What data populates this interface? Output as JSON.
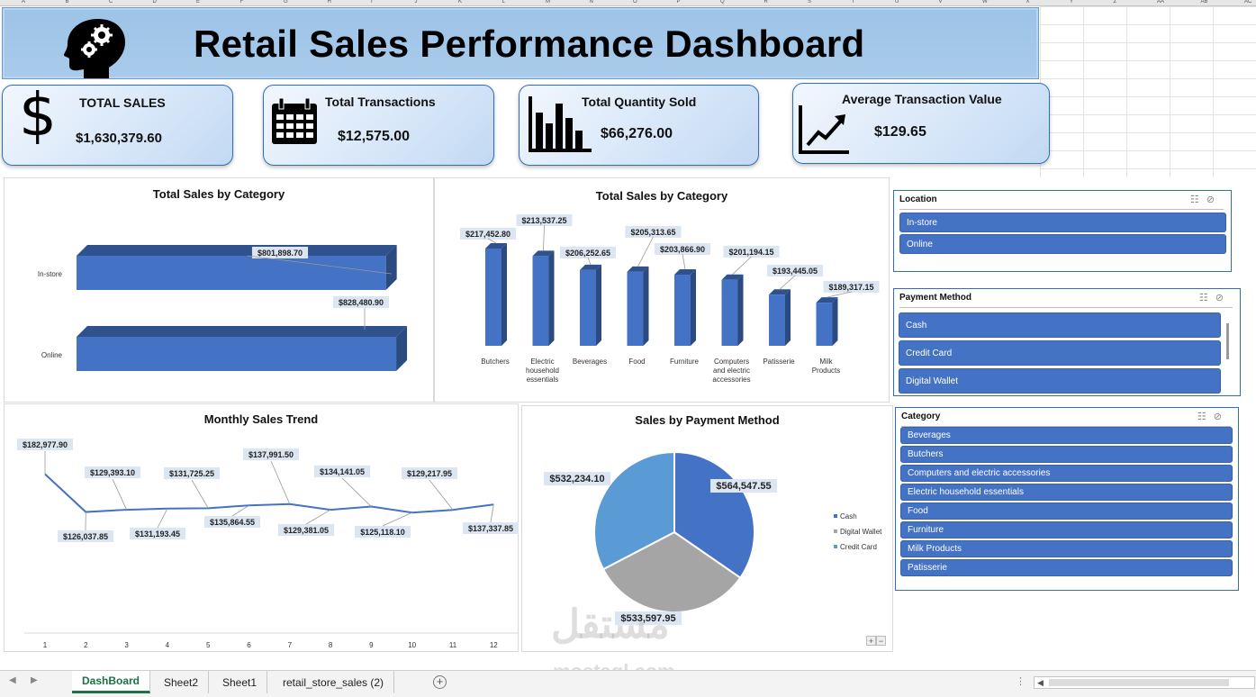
{
  "spreadsheet": {
    "columns": [
      "A",
      "B",
      "C",
      "D",
      "E",
      "F",
      "G",
      "H",
      "I",
      "J",
      "K",
      "L",
      "M",
      "N",
      "O",
      "P",
      "Q",
      "R",
      "S",
      "T",
      "U",
      "V",
      "W",
      "X",
      "Y",
      "Z",
      "AA",
      "AB",
      "AC"
    ],
    "sheet_tabs": [
      "DashBoard",
      "Sheet2",
      "Sheet1",
      "retail_store_sales (2)"
    ],
    "active_tab": "DashBoard"
  },
  "header": {
    "title": "Retail Sales Performance Dashboard",
    "icon": "brain-gears-icon"
  },
  "kpis": [
    {
      "label": "TOTAL SALES",
      "value": "$1,630,379.60",
      "icon": "dollar-icon"
    },
    {
      "label": "Total Transactions",
      "value": "$12,575.00",
      "icon": "calendar-icon"
    },
    {
      "label": "Total Quantity Sold",
      "value": "$66,276.00",
      "icon": "bar-chart-icon"
    },
    {
      "label": "Average Transaction Value",
      "value": "$129.65",
      "icon": "trend-up-icon"
    }
  ],
  "chart_data": [
    {
      "type": "bar",
      "orientation": "horizontal",
      "title": "Total Sales by Category",
      "categories": [
        "In-store",
        "Online"
      ],
      "values": [
        801898.7,
        828480.9
      ],
      "labels": [
        "$801,898.70",
        "$828,480.90"
      ],
      "color": "#4472c4"
    },
    {
      "type": "bar",
      "title": "Total Sales by Category",
      "categories": [
        "Butchers",
        "Electric household essentials",
        "Beverages",
        "Food",
        "Furniture",
        "Computers and electric accessories",
        "Patisserie",
        "Milk Products"
      ],
      "category_lines": [
        [
          "Butchers"
        ],
        [
          "Electric",
          "household",
          "essentials"
        ],
        [
          "Beverages"
        ],
        [
          "Food"
        ],
        [
          "Furniture"
        ],
        [
          "Computers",
          "and electric",
          "accessories"
        ],
        [
          "Patisserie"
        ],
        [
          "Milk",
          "Products"
        ]
      ],
      "values": [
        217452.8,
        213537.25,
        206252.65,
        205313.65,
        203866.9,
        201194.15,
        193445.05,
        189317.15
      ],
      "labels": [
        "$217,452.80",
        "$213,537.25",
        "$206,252.65",
        "$205,313.65",
        "$203,866.90",
        "$201,194.15",
        "$193,445.05",
        "$189,317.15"
      ],
      "color": "#4472c4"
    },
    {
      "type": "line",
      "title": "Monthly Sales Trend",
      "x": [
        1,
        2,
        3,
        4,
        5,
        6,
        7,
        8,
        9,
        10,
        11,
        12
      ],
      "values": [
        182977.9,
        126037.85,
        129393.1,
        131193.45,
        131725.25,
        135864.55,
        137991.5,
        129381.05,
        134141.05,
        125118.1,
        129217.95,
        137337.85
      ],
      "labels": [
        "$182,977.90",
        "$126,037.85",
        "$129,393.10",
        "$131,193.45",
        "$131,725.25",
        "$135,864.55",
        "$137,991.50",
        "$129,381.05",
        "$134,141.05",
        "$125,118.10",
        "$129,217.95",
        "$137,337.85"
      ],
      "color": "#4472c4"
    },
    {
      "type": "pie",
      "title": "Sales by Payment Method",
      "categories": [
        "Cash",
        "Digital Wallet",
        "Credit Card"
      ],
      "values": [
        564547.55,
        533597.95,
        532234.1
      ],
      "labels": [
        "$564,547.55",
        "$533,597.95",
        "$532,234.10"
      ],
      "colors": [
        "#4472c4",
        "#a5a5a5",
        "#5b9bd5"
      ],
      "legend_position": "right"
    }
  ],
  "slicers": [
    {
      "title": "Location",
      "items": [
        "In-store",
        "Online"
      ]
    },
    {
      "title": "Payment Method",
      "items": [
        "Cash",
        "Credit Card",
        "Digital Wallet"
      ]
    },
    {
      "title": "Category",
      "items": [
        "Beverages",
        "Butchers",
        "Computers and electric accessories",
        "Electric household essentials",
        "Food",
        "Furniture",
        "Milk Products",
        "Patisserie"
      ]
    }
  ],
  "watermark": {
    "arabic": "مستقل",
    "latin": "mostaql.com"
  }
}
